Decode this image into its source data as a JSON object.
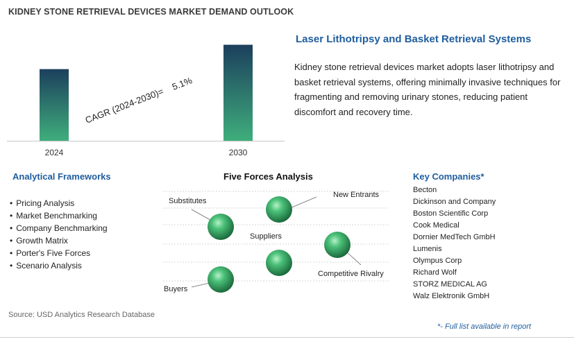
{
  "page": {
    "title": "KIDNEY STONE RETRIEVAL DEVICES MARKET DEMAND OUTLOOK"
  },
  "chart_data": {
    "type": "bar",
    "title": "",
    "categories": [
      "2024",
      "2030"
    ],
    "values": [
      1.0,
      1.34
    ],
    "ylim": [
      0,
      1.5
    ],
    "annotation": "CAGR (2024-2030)=    5.1%",
    "grid": false,
    "colors": {
      "bar_top": "#1c3f5d",
      "bar_bottom": "#3fae7c"
    }
  },
  "description": {
    "heading": "Laser Lithotripsy and Basket Retrieval Systems",
    "text": "Kidney stone retrieval devices market adopts laser lithotripsy and basket retrieval systems, offering minimally invasive techniques for fragmenting and removing urinary stones, reducing patient discomfort and recovery time."
  },
  "frameworks": {
    "heading": "Analytical Frameworks",
    "items": [
      "Pricing Analysis",
      "Market Benchmarking",
      "Company Benchmarking",
      "Growth Matrix",
      "Porter's Five Forces",
      "Scenario Analysis"
    ]
  },
  "five_forces": {
    "heading": "Five Forces Analysis",
    "labels": {
      "substitutes": "Substitutes",
      "new_entrants": "New Entrants",
      "suppliers": "Suppliers",
      "competitive_rivalry": "Competitive Rivalry",
      "buyers": "Buyers"
    }
  },
  "companies": {
    "heading": "Key Companies*",
    "items": [
      "Becton",
      "Dickinson and Company",
      "Boston Scientific Corp",
      "Cook Medical",
      "Dornier MedTech GmbH",
      "Lumenis",
      "Olympus Corp",
      "Richard Wolf",
      "STORZ MEDICAL AG",
      "Walz Elektronik GmbH"
    ]
  },
  "footer": {
    "source": "Source: USD Analytics Research Database",
    "note": "*- Full list available in report"
  }
}
